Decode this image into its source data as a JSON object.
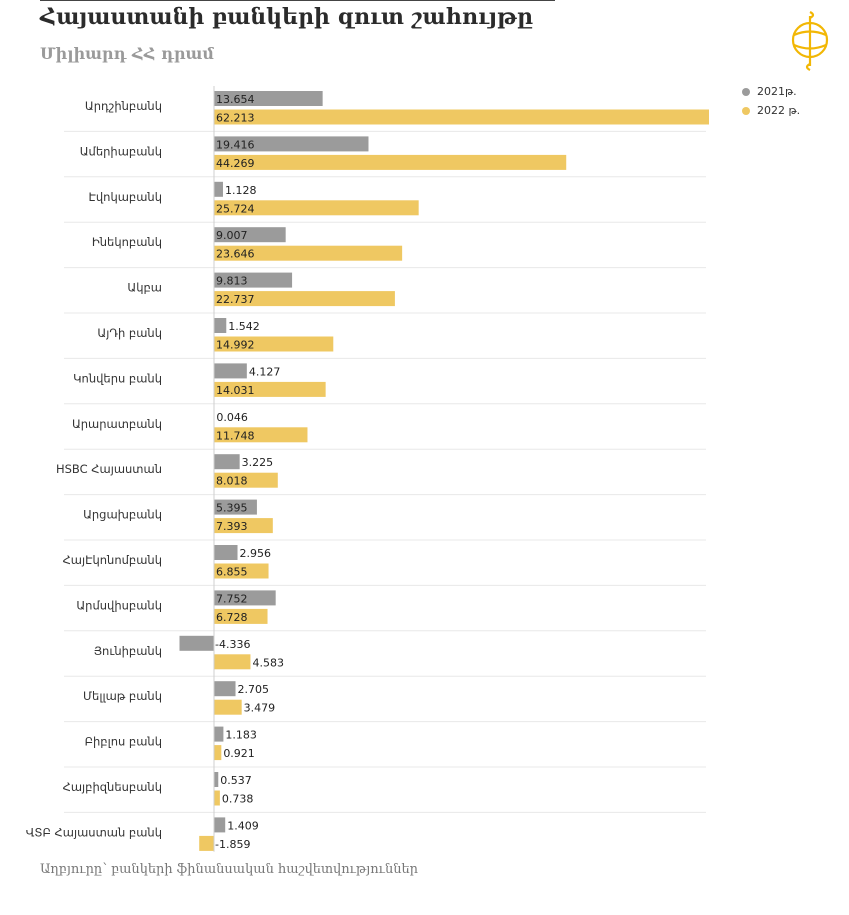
{
  "header": {
    "title": "Հայաստանի բանկերի զուտ շահույթը",
    "subtitle": "Միլիարդ ՀՀ դրամ"
  },
  "source": "Աղբյուրը՝ բանկերի ֆինանսական հաշվետվություններ",
  "colors": {
    "series_2021": "#9b9b9b",
    "series_2022": "#efc862",
    "logo": "#f2b705"
  },
  "legend": [
    {
      "label": "2021թ.",
      "color": "#9b9b9b"
    },
    {
      "label": "2022 թ.",
      "color": "#efc862"
    }
  ],
  "chart_data": {
    "type": "bar",
    "orientation": "horizontal",
    "categories": [
      "Արդշինբանկ",
      "Ամերիաբանկ",
      "Էվոկաբանկ",
      "Ինեկոբանկ",
      "Ակբա",
      "ԱյԴի բանկ",
      "Կոնվերս բանկ",
      "Արարատբանկ",
      "HSBC Հայաստան",
      "Արցախբանկ",
      "ՀայԷկոնոմբանկ",
      "Արմսվիսբանկ",
      "Յունիբանկ",
      "Մելլաթ բանկ",
      "Բիբլոս բանկ",
      "Հայբիզնեսբանկ",
      "ՎՏԲ Հայաստան բանկ"
    ],
    "series": [
      {
        "name": "2021թ.",
        "values": [
          13.654,
          19.416,
          1.128,
          9.007,
          9.813,
          1.542,
          4.127,
          0.046,
          3.225,
          5.395,
          2.956,
          7.752,
          -4.336,
          2.705,
          1.183,
          0.537,
          1.409
        ],
        "labels": [
          "13.654",
          "19.416",
          "1.128",
          "9.007",
          "9.813",
          "1.542",
          "4.127",
          "0.046",
          "3.225",
          "5.395",
          "2.956",
          "7.752",
          "-4.336",
          "2.705",
          "1.183",
          "0.537",
          "1.409"
        ]
      },
      {
        "name": "2022 թ.",
        "values": [
          62.213,
          44.269,
          25.724,
          23.646,
          22.737,
          14.992,
          14.031,
          11.748,
          8.018,
          7.393,
          6.855,
          6.728,
          4.583,
          3.479,
          0.921,
          0.738,
          -1.859
        ],
        "labels": [
          "62.213",
          "44.269",
          "25.724",
          "23.646",
          "22.737",
          "14.992",
          "14.031",
          "11.748",
          "8.018",
          "7.393",
          "6.855",
          "6.728",
          "4.583",
          "3.479",
          "0.921",
          "0.738",
          "-1.859"
        ]
      }
    ],
    "title": "Հայաստանի բանկերի զուտ շահույթը",
    "xlabel": "",
    "ylabel": "",
    "legend_position": "top-right",
    "grid": false
  }
}
